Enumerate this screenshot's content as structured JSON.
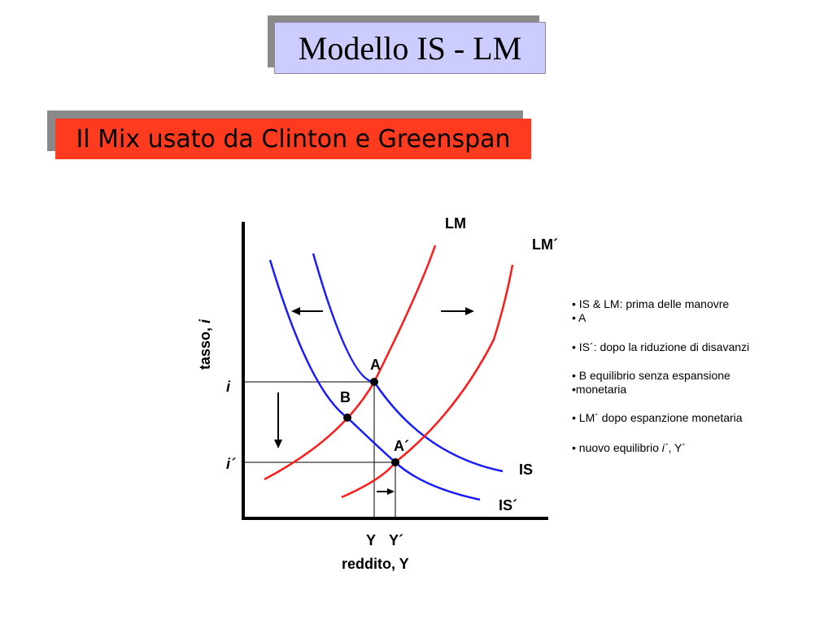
{
  "title": "Modello IS - LM",
  "subtitle": "Il Mix usato da Clinton e Greenspan",
  "colors": {
    "title_bg": "#ccccff",
    "subtitle_bg": "#ff3b1f",
    "is_curve": "#1a1aff",
    "lm_curve": "#ff1a1a",
    "shadow": "#8a8a8a"
  },
  "diagram": {
    "y_axis_label": "tasso, ",
    "y_axis_var": "i",
    "x_axis_label": "reddito, Y",
    "curves": {
      "lm": "LM",
      "lm_prime": "LM´",
      "is": "IS",
      "is_prime": "IS´"
    },
    "points": {
      "a": "A",
      "b": "B",
      "a_prime": "A´"
    },
    "ticks": {
      "i": "i",
      "i_prime": "i´",
      "y": "Y",
      "y_prime": "Y´"
    }
  },
  "notes": [
    {
      "text": "• IS & LM: prima delle manovre"
    },
    {
      "text": "• A"
    },
    {
      "text": "• IS´: dopo la riduzione di disavanzi"
    },
    {
      "text": "• B equilibrio senza espansione"
    },
    {
      "text": "•monetaria"
    },
    {
      "text": "• LM´ dopo espanzione monetaria"
    },
    {
      "text_before": "• nuovo equilibrio ",
      "text_italic": "i´",
      "text_after": ", Y´"
    }
  ]
}
